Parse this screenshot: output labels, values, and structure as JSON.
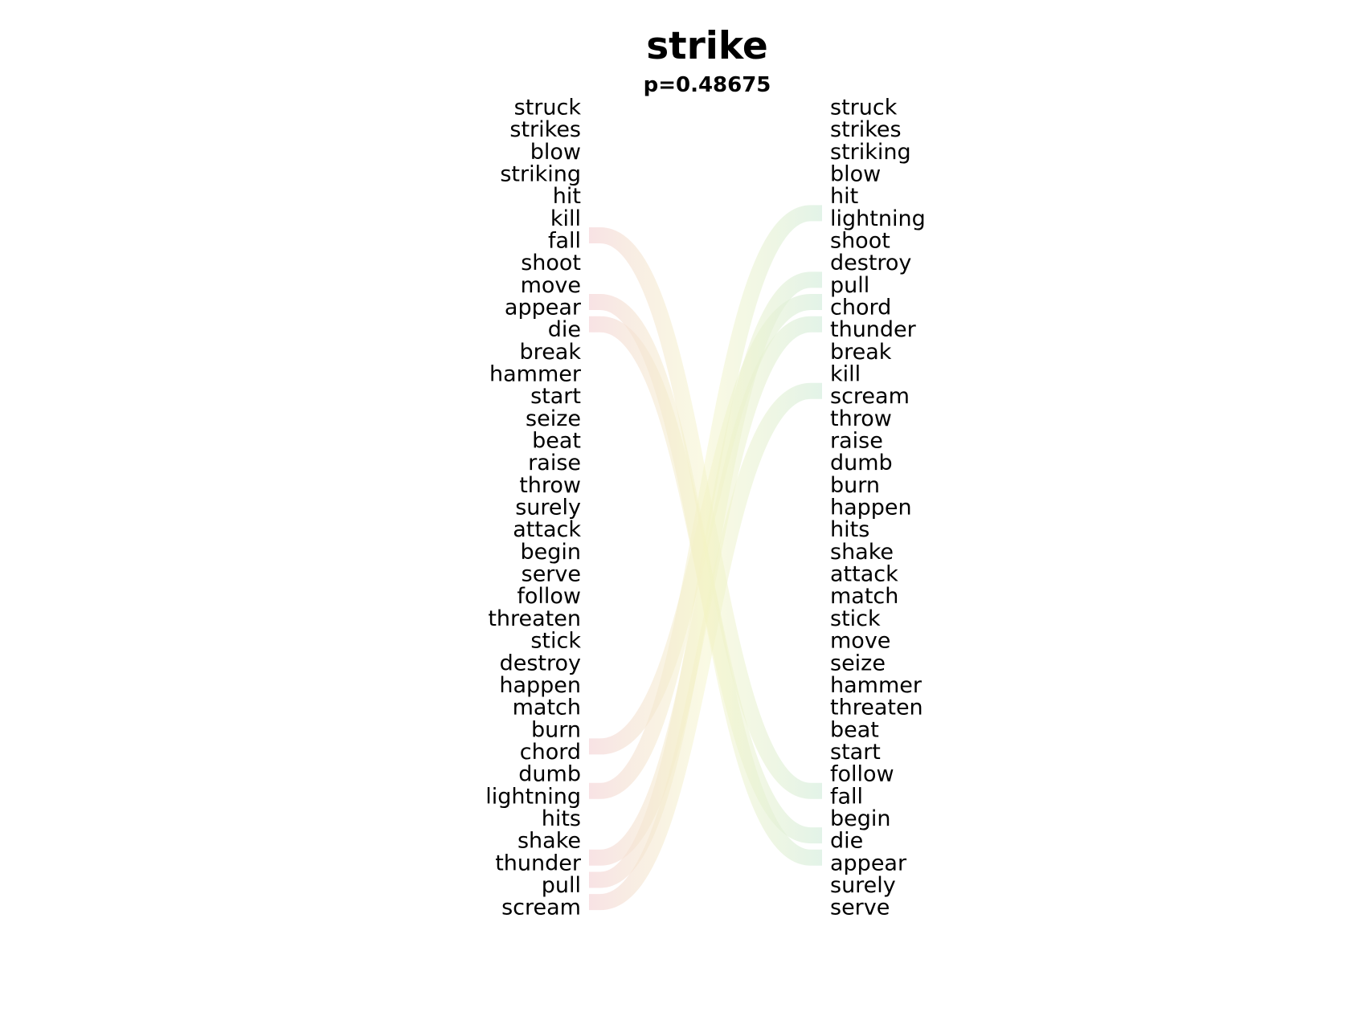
{
  "title": "strike",
  "subtitle": "p=0.48675",
  "colors": {
    "left_ribbon": "#f6d9dc",
    "right_ribbon": "#d9efe0",
    "middle_ribbon": "#f3f3c4"
  },
  "chart_data": {
    "type": "bump",
    "left_ranking": [
      "struck",
      "strikes",
      "blow",
      "striking",
      "hit",
      "kill",
      "fall",
      "shoot",
      "move",
      "appear",
      "die",
      "break",
      "hammer",
      "start",
      "seize",
      "beat",
      "raise",
      "throw",
      "surely",
      "attack",
      "begin",
      "serve",
      "follow",
      "threaten",
      "stick",
      "destroy",
      "happen",
      "match",
      "burn",
      "chord",
      "dumb",
      "lightning",
      "hits",
      "shake",
      "thunder",
      "pull",
      "scream"
    ],
    "right_ranking": [
      "struck",
      "strikes",
      "striking",
      "blow",
      "hit",
      "lightning",
      "shoot",
      "destroy",
      "pull",
      "chord",
      "thunder",
      "break",
      "kill",
      "scream",
      "throw",
      "raise",
      "dumb",
      "burn",
      "happen",
      "hits",
      "shake",
      "attack",
      "match",
      "stick",
      "move",
      "seize",
      "hammer",
      "threaten",
      "beat",
      "start",
      "follow",
      "fall",
      "begin",
      "die",
      "appear",
      "surely",
      "serve"
    ],
    "highlighted_links": [
      "fall",
      "appear",
      "die",
      "chord",
      "lightning",
      "thunder",
      "pull",
      "scream"
    ]
  }
}
